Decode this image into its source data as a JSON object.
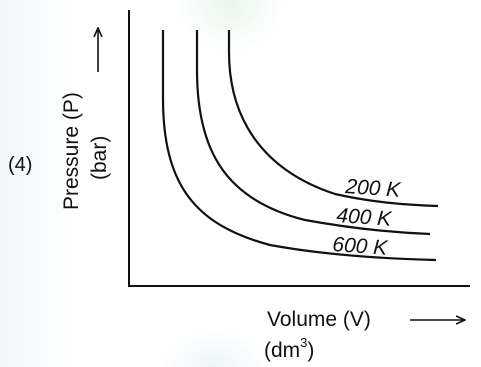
{
  "option": "(4)",
  "chart_data": {
    "type": "line",
    "title": "",
    "xlabel": "Volume (V)",
    "xunit_prefix": "(dm",
    "xunit_power": "3",
    "xunit_suffix": ")",
    "ylabel": "Pressure (P)",
    "yunit": "(bar)",
    "ticks": "none",
    "grid": false,
    "series": [
      {
        "name": "200 K",
        "label": "200 K"
      },
      {
        "name": "400 K",
        "label": "400 K"
      },
      {
        "name": "600 K",
        "label": "600 K"
      }
    ]
  },
  "arrow_glyph": "⟶"
}
